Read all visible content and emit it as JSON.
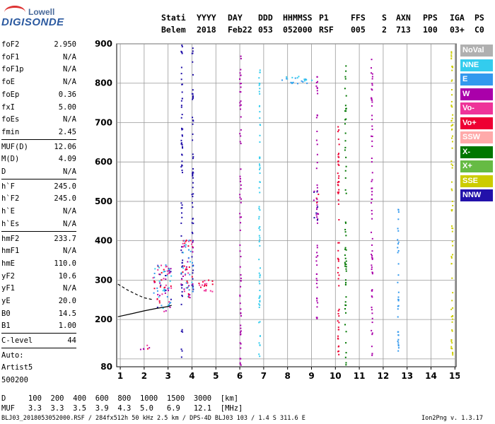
{
  "logo": {
    "top": "Lowell",
    "main": "DIGISONDE"
  },
  "header": {
    "labels": [
      {
        "key": "stati",
        "label": "Stati",
        "value": "Belem"
      },
      {
        "key": "yyyy",
        "label": "YYYY",
        "value": "2018"
      },
      {
        "key": "day",
        "label": "DAY",
        "value": "Feb22"
      },
      {
        "key": "ddd",
        "label": "DDD",
        "value": "053"
      },
      {
        "key": "hhmmss",
        "label": "HHMMSS",
        "value": "052000"
      },
      {
        "key": "p1",
        "label": "P1",
        "value": "RSF"
      },
      {
        "key": "ffs",
        "label": "FFS",
        "value": "005"
      },
      {
        "key": "s",
        "label": "S",
        "value": "2"
      },
      {
        "key": "axn",
        "label": "AXN",
        "value": "713"
      },
      {
        "key": "pps",
        "label": "PPS",
        "value": "100"
      },
      {
        "key": "iga",
        "label": "IGA",
        "value": "03+"
      },
      {
        "key": "ps",
        "label": "PS",
        "value": "C0"
      }
    ]
  },
  "params_a": [
    {
      "name": "foF2",
      "value": "2.950"
    },
    {
      "name": "foF1",
      "value": "N/A"
    },
    {
      "name": "foF1p",
      "value": "N/A"
    },
    {
      "name": "foE",
      "value": "N/A"
    },
    {
      "name": "foEp",
      "value": "0.36"
    },
    {
      "name": "fxI",
      "value": "5.00"
    },
    {
      "name": "foEs",
      "value": "N/A"
    },
    {
      "name": "fmin",
      "value": "2.45"
    }
  ],
  "params_b": [
    {
      "name": "MUF(D)",
      "value": "12.06"
    },
    {
      "name": "M(D)",
      "value": "4.09"
    },
    {
      "name": "D",
      "value": "N/A"
    }
  ],
  "params_c": [
    {
      "name": "h`F",
      "value": "245.0"
    },
    {
      "name": "h`F2",
      "value": "245.0"
    },
    {
      "name": "h`E",
      "value": "N/A"
    },
    {
      "name": "h`Es",
      "value": "N/A"
    }
  ],
  "params_d": [
    {
      "name": "hmF2",
      "value": "233.7"
    },
    {
      "name": "hmF1",
      "value": "N/A"
    },
    {
      "name": "hmE",
      "value": "110.0"
    },
    {
      "name": "yF2",
      "value": "10.6"
    },
    {
      "name": "yF1",
      "value": "N/A"
    },
    {
      "name": "yE",
      "value": "20.0"
    },
    {
      "name": "B0",
      "value": "14.5"
    },
    {
      "name": "B1",
      "value": "1.00"
    }
  ],
  "c_level": {
    "name": "C-level",
    "value": "44"
  },
  "auto": {
    "line1": "Auto:",
    "line2": "Artist5",
    "line3": "500200"
  },
  "legend": [
    {
      "label": "NoVal",
      "color": "#b0b0b0"
    },
    {
      "label": "NNE",
      "color": "#33ccee"
    },
    {
      "label": "E",
      "color": "#3399ee"
    },
    {
      "label": "W",
      "color": "#aa00aa"
    },
    {
      "label": "Vo-",
      "color": "#ee3399"
    },
    {
      "label": "Vo+",
      "color": "#ee0033"
    },
    {
      "label": "SSW",
      "color": "#ffaaaa"
    },
    {
      "label": "X-",
      "color": "#007700"
    },
    {
      "label": "X+",
      "color": "#66bb44"
    },
    {
      "label": "SSE",
      "color": "#cccc00"
    },
    {
      "label": "NNW",
      "color": "#2211aa"
    }
  ],
  "bottom": {
    "d_line": "D     100  200  400  600  800  1000  1500  3000  [km]",
    "muf_line": "MUF   3.3  3.3  3.5  3.9  4.3  5.0   6.9   12.1  [MHz]"
  },
  "footer": {
    "left": "BLJ03_2018053052000.RSF / 284fx512h 50 kHz 2.5 km / DPS-4D BLJ03 103 / 1.4 S 311.6 E",
    "right": "Ion2Png v. 1.3.17"
  },
  "chart_data": {
    "type": "scatter",
    "x_ticks": [
      1,
      2,
      3,
      4,
      5,
      6,
      7,
      8,
      9,
      10,
      11,
      12,
      13,
      14,
      15
    ],
    "y_ticks": [
      100,
      200,
      300,
      400,
      500,
      600,
      700,
      800,
      900
    ],
    "y_tick_labels": [
      "",
      "200",
      "300",
      "400",
      "500",
      "600",
      "700",
      "800",
      "900"
    ],
    "y_bottom_label": "80",
    "xlim": [
      0.85,
      15.05
    ],
    "ylim": [
      80,
      900
    ],
    "grid": true,
    "trace_solid": [
      [
        0.9,
        207
      ],
      [
        1.5,
        215
      ],
      [
        2.0,
        222
      ],
      [
        2.5,
        228
      ],
      [
        3.0,
        233
      ],
      [
        3.15,
        236
      ]
    ],
    "trace_dashed": [
      [
        0.9,
        290
      ],
      [
        1.3,
        275
      ],
      [
        1.7,
        263
      ],
      [
        2.0,
        255
      ],
      [
        2.4,
        250
      ]
    ],
    "echo_columns": [
      {
        "x": 3.55,
        "ymin": 100,
        "ymax": 900,
        "color": "#2211aa"
      },
      {
        "x": 4.0,
        "ymin": 250,
        "ymax": 900,
        "color": "#2211aa"
      },
      {
        "x": 6.0,
        "ymin": 80,
        "ymax": 870,
        "color": "#aa00aa"
      },
      {
        "x": 6.8,
        "ymin": 100,
        "ymax": 860,
        "color": "#33ccee"
      },
      {
        "x": 9.2,
        "ymin": 200,
        "ymax": 840,
        "color": "#aa00aa"
      },
      {
        "x": 10.1,
        "ymin": 110,
        "ymax": 700,
        "color": "#ee0033"
      },
      {
        "x": 10.4,
        "ymin": 80,
        "ymax": 870,
        "color": "#007700"
      },
      {
        "x": 11.5,
        "ymin": 100,
        "ymax": 870,
        "color": "#aa00aa"
      },
      {
        "x": 12.6,
        "ymin": 100,
        "ymax": 480,
        "color": "#3399ee"
      },
      {
        "x": 14.85,
        "ymin": 80,
        "ymax": 880,
        "color": "#cccc00"
      }
    ],
    "echo_clusters": [
      {
        "x": 2.75,
        "y": 280,
        "w": 0.8,
        "h": 120,
        "colors": [
          "#33ccee",
          "#ee0033",
          "#aa00aa",
          "#3399ee",
          "#2211aa",
          "#ee3399"
        ]
      },
      {
        "x": 3.8,
        "y": 330,
        "w": 0.5,
        "h": 150,
        "colors": [
          "#ee0033",
          "#33ccee",
          "#3399ee",
          "#aa00aa",
          "#ee3399"
        ]
      },
      {
        "x": 4.6,
        "y": 285,
        "w": 0.7,
        "h": 30,
        "colors": [
          "#ee0033",
          "#ee3399"
        ]
      },
      {
        "x": 8.4,
        "y": 808,
        "w": 1.3,
        "h": 20,
        "colors": [
          "#3399ee",
          "#33ccee"
        ]
      },
      {
        "x": 2.0,
        "y": 128,
        "w": 0.5,
        "h": 14,
        "colors": [
          "#aa00aa",
          "#ee3399",
          "#ee0033"
        ]
      },
      {
        "x": 9.2,
        "y": 490,
        "w": 0.2,
        "h": 80,
        "colors": [
          "#aa00aa",
          "#ee0033",
          "#2211aa"
        ]
      }
    ]
  }
}
